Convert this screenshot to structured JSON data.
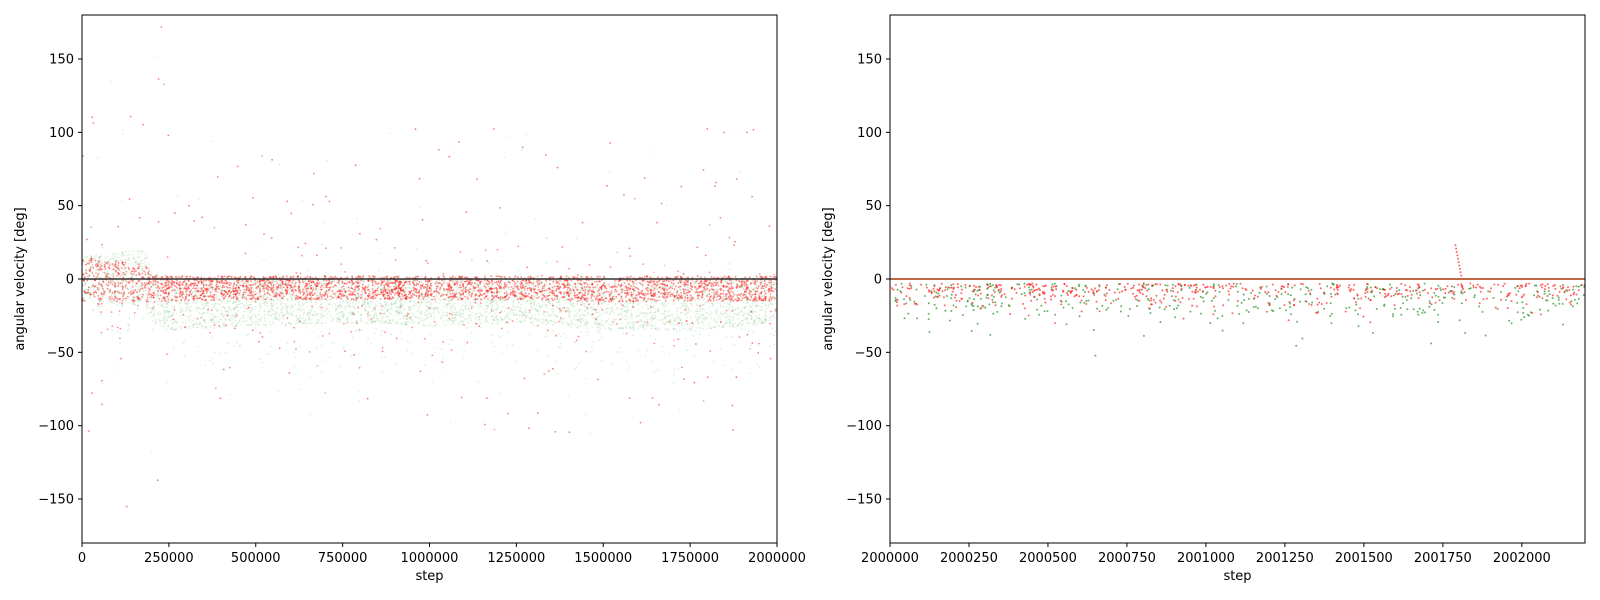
{
  "chart_data": [
    {
      "type": "scatter",
      "xlabel": "step",
      "ylabel": "angular velocity [deg]",
      "xlim": [
        0,
        2000000
      ],
      "ylim": [
        -180,
        180
      ],
      "xticks": [
        "0",
        "250000",
        "500000",
        "750000",
        "1000000",
        "1250000",
        "1500000",
        "1750000",
        "2000000"
      ],
      "xtick_values": [
        0,
        250000,
        500000,
        750000,
        1000000,
        1250000,
        1500000,
        1750000,
        2000000
      ],
      "yticks": [
        "−150",
        "−100",
        "−50",
        "0",
        "50",
        "100",
        "150"
      ],
      "ytick_values": [
        -150,
        -100,
        -50,
        0,
        50,
        100,
        150
      ],
      "grid": false,
      "legend": "none",
      "zero_line": true,
      "series": [
        {
          "color": "#008000",
          "marker_alpha": 0.12,
          "envelope_x": [
            0,
            100000,
            180000,
            200000,
            250000,
            500000,
            750000,
            1000000,
            1250000,
            1500000,
            1750000,
            2000000
          ],
          "envelope_low": [
            -15,
            -18,
            -18,
            -30,
            -35,
            -32,
            -30,
            -32,
            -30,
            -35,
            -35,
            -30
          ],
          "envelope_high": [
            15,
            18,
            20,
            5,
            2,
            2,
            2,
            2,
            2,
            2,
            2,
            2
          ]
        },
        {
          "color": "#ff0000",
          "marker_alpha": 0.25,
          "envelope_x": [
            0,
            100000,
            180000,
            200000,
            250000,
            500000,
            750000,
            1000000,
            1250000,
            1500000,
            1750000,
            2000000
          ],
          "envelope_low": [
            -15,
            -15,
            -16,
            -16,
            -15,
            -14,
            -14,
            -14,
            -14,
            -16,
            -15,
            -15
          ],
          "envelope_high": [
            15,
            12,
            10,
            3,
            2,
            2,
            2,
            2,
            2,
            2,
            2,
            2
          ]
        }
      ]
    },
    {
      "type": "scatter",
      "xlabel": "step",
      "ylabel": "angular velocity [deg]",
      "xlim": [
        2000000,
        2002200
      ],
      "ylim": [
        -180,
        180
      ],
      "xticks": [
        "2000000",
        "2000250",
        "2000500",
        "2000750",
        "2001000",
        "2001250",
        "2001500",
        "2001750",
        "2002000"
      ],
      "xtick_values": [
        2000000,
        2000250,
        2000500,
        2000750,
        2001000,
        2001250,
        2001500,
        2001750,
        2002000
      ],
      "yticks": [
        "−150",
        "−100",
        "−50",
        "0",
        "50",
        "100",
        "150"
      ],
      "ytick_values": [
        -150,
        -100,
        -50,
        0,
        50,
        100,
        150
      ],
      "grid": false,
      "legend": "none",
      "series": [
        {
          "color": "#008000",
          "baseline": 0,
          "typical_low": -30,
          "min": -55,
          "max": 5
        },
        {
          "color": "#ff0000",
          "baseline": 0,
          "typical_low": -20,
          "min": -52,
          "max": 23,
          "spike_x": 2001790,
          "spike_max": 23
        }
      ]
    }
  ]
}
